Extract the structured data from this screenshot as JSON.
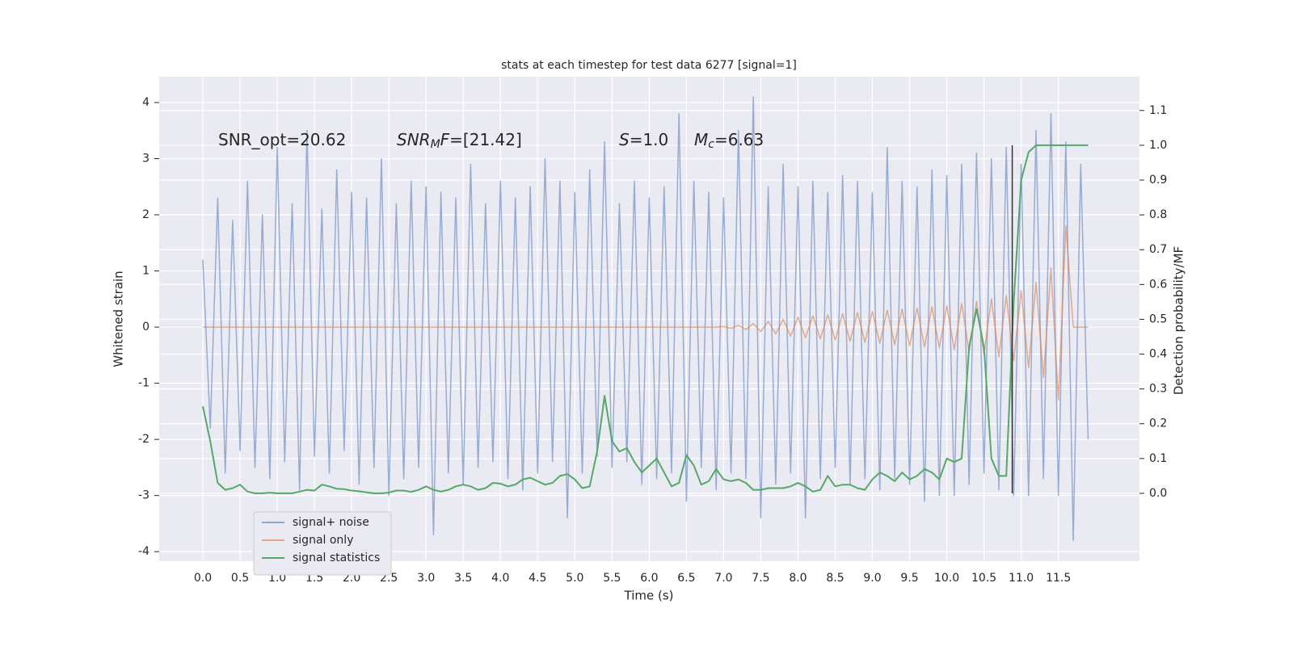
{
  "chart_data": {
    "type": "line",
    "title": "stats at each timestep for test data 6277 [signal=1]",
    "xlabel": "Time (s)",
    "ylabel": "Whitened strain",
    "y2label": "Detection probability/MF",
    "annotations": [
      [
        {
          "text": "SNR_opt=20.62",
          "style": "normal"
        }
      ],
      [
        {
          "text": "SNR",
          "style": "italic"
        },
        {
          "text": "M",
          "style": "sub"
        },
        {
          "text": "F",
          "style": "italic"
        },
        {
          "text": "=[21.42]",
          "style": "normal"
        }
      ],
      [
        {
          "text": "S",
          "style": "italic"
        },
        {
          "text": "=1.0",
          "style": "normal"
        }
      ],
      [
        {
          "text": "M",
          "style": "italic"
        },
        {
          "text": "c",
          "style": "sub"
        },
        {
          "text": "=6.63",
          "style": "normal"
        }
      ]
    ],
    "x": [
      0.0,
      0.1,
      0.2,
      0.3,
      0.4,
      0.5,
      0.6,
      0.7,
      0.8,
      0.9,
      1.0,
      1.1,
      1.2,
      1.3,
      1.4,
      1.5,
      1.6,
      1.7,
      1.8,
      1.9,
      2.0,
      2.1,
      2.2,
      2.3,
      2.4,
      2.5,
      2.6,
      2.7,
      2.8,
      2.9,
      3.0,
      3.1,
      3.2,
      3.3,
      3.4,
      3.5,
      3.6,
      3.7,
      3.8,
      3.9,
      4.0,
      4.1,
      4.2,
      4.3,
      4.4,
      4.5,
      4.6,
      4.7,
      4.8,
      4.9,
      5.0,
      5.1,
      5.2,
      5.3,
      5.4,
      5.5,
      5.6,
      5.7,
      5.8,
      5.9,
      6.0,
      6.1,
      6.2,
      6.3,
      6.4,
      6.5,
      6.6,
      6.7,
      6.8,
      6.9,
      7.0,
      7.1,
      7.2,
      7.3,
      7.4,
      7.5,
      7.6,
      7.7,
      7.8,
      7.9,
      8.0,
      8.1,
      8.2,
      8.3,
      8.4,
      8.5,
      8.6,
      8.7,
      8.8,
      8.9,
      9.0,
      9.1,
      9.2,
      9.3,
      9.4,
      9.5,
      9.6,
      9.7,
      9.8,
      9.9,
      10.0,
      10.1,
      10.2,
      10.3,
      10.4,
      10.5,
      10.6,
      10.7,
      10.8,
      10.9,
      11.0,
      11.1,
      11.2,
      11.3,
      11.4,
      11.5,
      11.6,
      11.7,
      11.8,
      11.9
    ],
    "series": [
      {
        "name": "signal+ noise",
        "color": "#8fa4cf",
        "values": [
          1.2,
          -1.8,
          2.3,
          -2.6,
          1.9,
          -2.2,
          2.6,
          -2.5,
          2.0,
          -2.7,
          3.2,
          -2.4,
          2.2,
          -2.9,
          3.5,
          -2.3,
          2.1,
          -2.6,
          2.8,
          -2.2,
          2.4,
          -2.8,
          2.3,
          -2.5,
          3.0,
          -3.0,
          2.2,
          -2.7,
          2.6,
          -2.5,
          2.5,
          -3.7,
          2.4,
          -2.6,
          2.3,
          -2.8,
          2.9,
          -2.5,
          2.2,
          -2.4,
          2.6,
          -2.7,
          2.3,
          -2.9,
          2.5,
          -2.6,
          3.0,
          -2.4,
          2.6,
          -3.4,
          2.4,
          -2.6,
          2.8,
          -2.3,
          3.3,
          -2.5,
          2.2,
          -2.4,
          2.6,
          -2.8,
          2.3,
          -2.7,
          2.5,
          -2.6,
          3.8,
          -3.1,
          2.6,
          -2.5,
          2.4,
          -2.9,
          2.3,
          -2.6,
          3.5,
          -2.7,
          4.1,
          -3.4,
          2.5,
          -2.8,
          2.9,
          -2.6,
          2.5,
          -3.4,
          2.6,
          -2.7,
          2.4,
          -2.5,
          2.7,
          -2.8,
          2.6,
          -2.7,
          2.4,
          -2.9,
          3.2,
          -2.7,
          2.6,
          -2.8,
          2.5,
          -3.1,
          2.8,
          -3.0,
          2.7,
          -3.0,
          2.9,
          -2.8,
          3.1,
          -2.6,
          3.0,
          -2.9,
          3.2,
          -3.0,
          2.9,
          -3.0,
          3.5,
          -2.7,
          3.8,
          -3.0,
          3.3,
          -3.8,
          2.9,
          -2.0
        ]
      },
      {
        "name": "signal only",
        "color": "#dd8452",
        "values": [
          0,
          0,
          0,
          0,
          0,
          0,
          0,
          0,
          0,
          0,
          0,
          0,
          0,
          0,
          0,
          0,
          0,
          0,
          0,
          0,
          0,
          0,
          0,
          0,
          0,
          0,
          0,
          0,
          0,
          0,
          0,
          0,
          0,
          0,
          0,
          0,
          0,
          0,
          0,
          0,
          0,
          0,
          0,
          0,
          0,
          0,
          0,
          0,
          0,
          0,
          0,
          0,
          0,
          0,
          0,
          0,
          0,
          0,
          0,
          0,
          0,
          0,
          0,
          0,
          0,
          0,
          0,
          0,
          0,
          0,
          0.01,
          -0.02,
          0.03,
          -0.04,
          0.06,
          -0.08,
          0.1,
          -0.12,
          0.14,
          -0.16,
          0.18,
          -0.19,
          0.2,
          -0.21,
          0.22,
          -0.23,
          0.24,
          -0.25,
          0.26,
          -0.27,
          0.28,
          -0.29,
          0.3,
          -0.31,
          0.32,
          -0.33,
          0.34,
          -0.35,
          0.36,
          -0.37,
          0.38,
          -0.4,
          0.42,
          -0.44,
          0.46,
          -0.48,
          0.5,
          -0.53,
          0.56,
          -0.6,
          0.65,
          -0.72,
          0.8,
          -0.9,
          1.05,
          -1.3,
          1.8,
          0,
          0,
          0
        ]
      },
      {
        "name": "signal statistics",
        "color": "#55a868",
        "axis": "y2",
        "values": [
          0.25,
          0.15,
          0.03,
          0.01,
          0.015,
          0.025,
          0.005,
          0,
          0,
          0.002,
          0,
          0,
          0,
          0.005,
          0.01,
          0.008,
          0.025,
          0.02,
          0.013,
          0.012,
          0.008,
          0.006,
          0.003,
          0,
          0,
          0.002,
          0.008,
          0.008,
          0.004,
          0.01,
          0.02,
          0.01,
          0.005,
          0.01,
          0.02,
          0.025,
          0.02,
          0.01,
          0.015,
          0.03,
          0.028,
          0.02,
          0.025,
          0.04,
          0.045,
          0.035,
          0.025,
          0.03,
          0.05,
          0.055,
          0.04,
          0.015,
          0.02,
          0.12,
          0.28,
          0.15,
          0.12,
          0.13,
          0.09,
          0.06,
          0.08,
          0.1,
          0.06,
          0.02,
          0.03,
          0.11,
          0.08,
          0.025,
          0.035,
          0.07,
          0.04,
          0.035,
          0.04,
          0.03,
          0.01,
          0.01,
          0.015,
          0.015,
          0.015,
          0.02,
          0.03,
          0.02,
          0.005,
          0.01,
          0.05,
          0.02,
          0.025,
          0.025,
          0.015,
          0.01,
          0.04,
          0.06,
          0.05,
          0.035,
          0.06,
          0.04,
          0.05,
          0.07,
          0.06,
          0.04,
          0.1,
          0.09,
          0.1,
          0.42,
          0.53,
          0.42,
          0.1,
          0.05,
          0.05,
          0.55,
          0.9,
          0.98,
          1.0,
          1.0,
          1.0,
          1.0,
          1.0,
          1.0,
          1.0,
          1.0
        ]
      }
    ],
    "vline": {
      "x": 10.88,
      "y2": [
        0,
        1
      ],
      "color": "#333333"
    },
    "xlim": [
      -0.587,
      12.59
    ],
    "xticks": [
      {
        "value": 0,
        "label": "0.0"
      },
      {
        "value": 0.5,
        "label": "0.5"
      },
      {
        "value": 1,
        "label": "1.0"
      },
      {
        "value": 1.5,
        "label": "1.5"
      },
      {
        "value": 2,
        "label": "2.0"
      },
      {
        "value": 2.5,
        "label": "2.5"
      },
      {
        "value": 3,
        "label": "3.0"
      },
      {
        "value": 3.5,
        "label": "3.5"
      },
      {
        "value": 4,
        "label": "4.0"
      },
      {
        "value": 4.5,
        "label": "4.5"
      },
      {
        "value": 5,
        "label": "5.0"
      },
      {
        "value": 5.5,
        "label": "5.5"
      },
      {
        "value": 6,
        "label": "6.0"
      },
      {
        "value": 6.5,
        "label": "6.5"
      },
      {
        "value": 7,
        "label": "7.0"
      },
      {
        "value": 7.5,
        "label": "7.5"
      },
      {
        "value": 8,
        "label": "8.0"
      },
      {
        "value": 8.5,
        "label": "8.5"
      },
      {
        "value": 9,
        "label": "9.0"
      },
      {
        "value": 9.5,
        "label": "9.5"
      },
      {
        "value": 10,
        "label": "10.0"
      },
      {
        "value": 10.5,
        "label": "10.5"
      },
      {
        "value": 11,
        "label": "11.0"
      },
      {
        "value": 11.5,
        "label": "11.5"
      }
    ],
    "ylim": [
      -4.17,
      4.46
    ],
    "yticks": [
      -4,
      -3,
      -2,
      -1,
      0,
      1,
      2,
      3,
      4
    ],
    "y2lim": [
      -0.195,
      1.197
    ],
    "y2ticks": [
      {
        "value": 0,
        "label": "0.0"
      },
      {
        "value": 0.1,
        "label": "0.1"
      },
      {
        "value": 0.2,
        "label": "0.2"
      },
      {
        "value": 0.3,
        "label": "0.3"
      },
      {
        "value": 0.4,
        "label": "0.4"
      },
      {
        "value": 0.5,
        "label": "0.5"
      },
      {
        "value": 0.6,
        "label": "0.6"
      },
      {
        "value": 0.7,
        "label": "0.7"
      },
      {
        "value": 0.8,
        "label": "0.8"
      },
      {
        "value": 0.9,
        "label": "0.9"
      },
      {
        "value": 1,
        "label": "1.0"
      },
      {
        "value": 1.1,
        "label": "1.1"
      }
    ],
    "grid": true,
    "legend": "lower left"
  }
}
